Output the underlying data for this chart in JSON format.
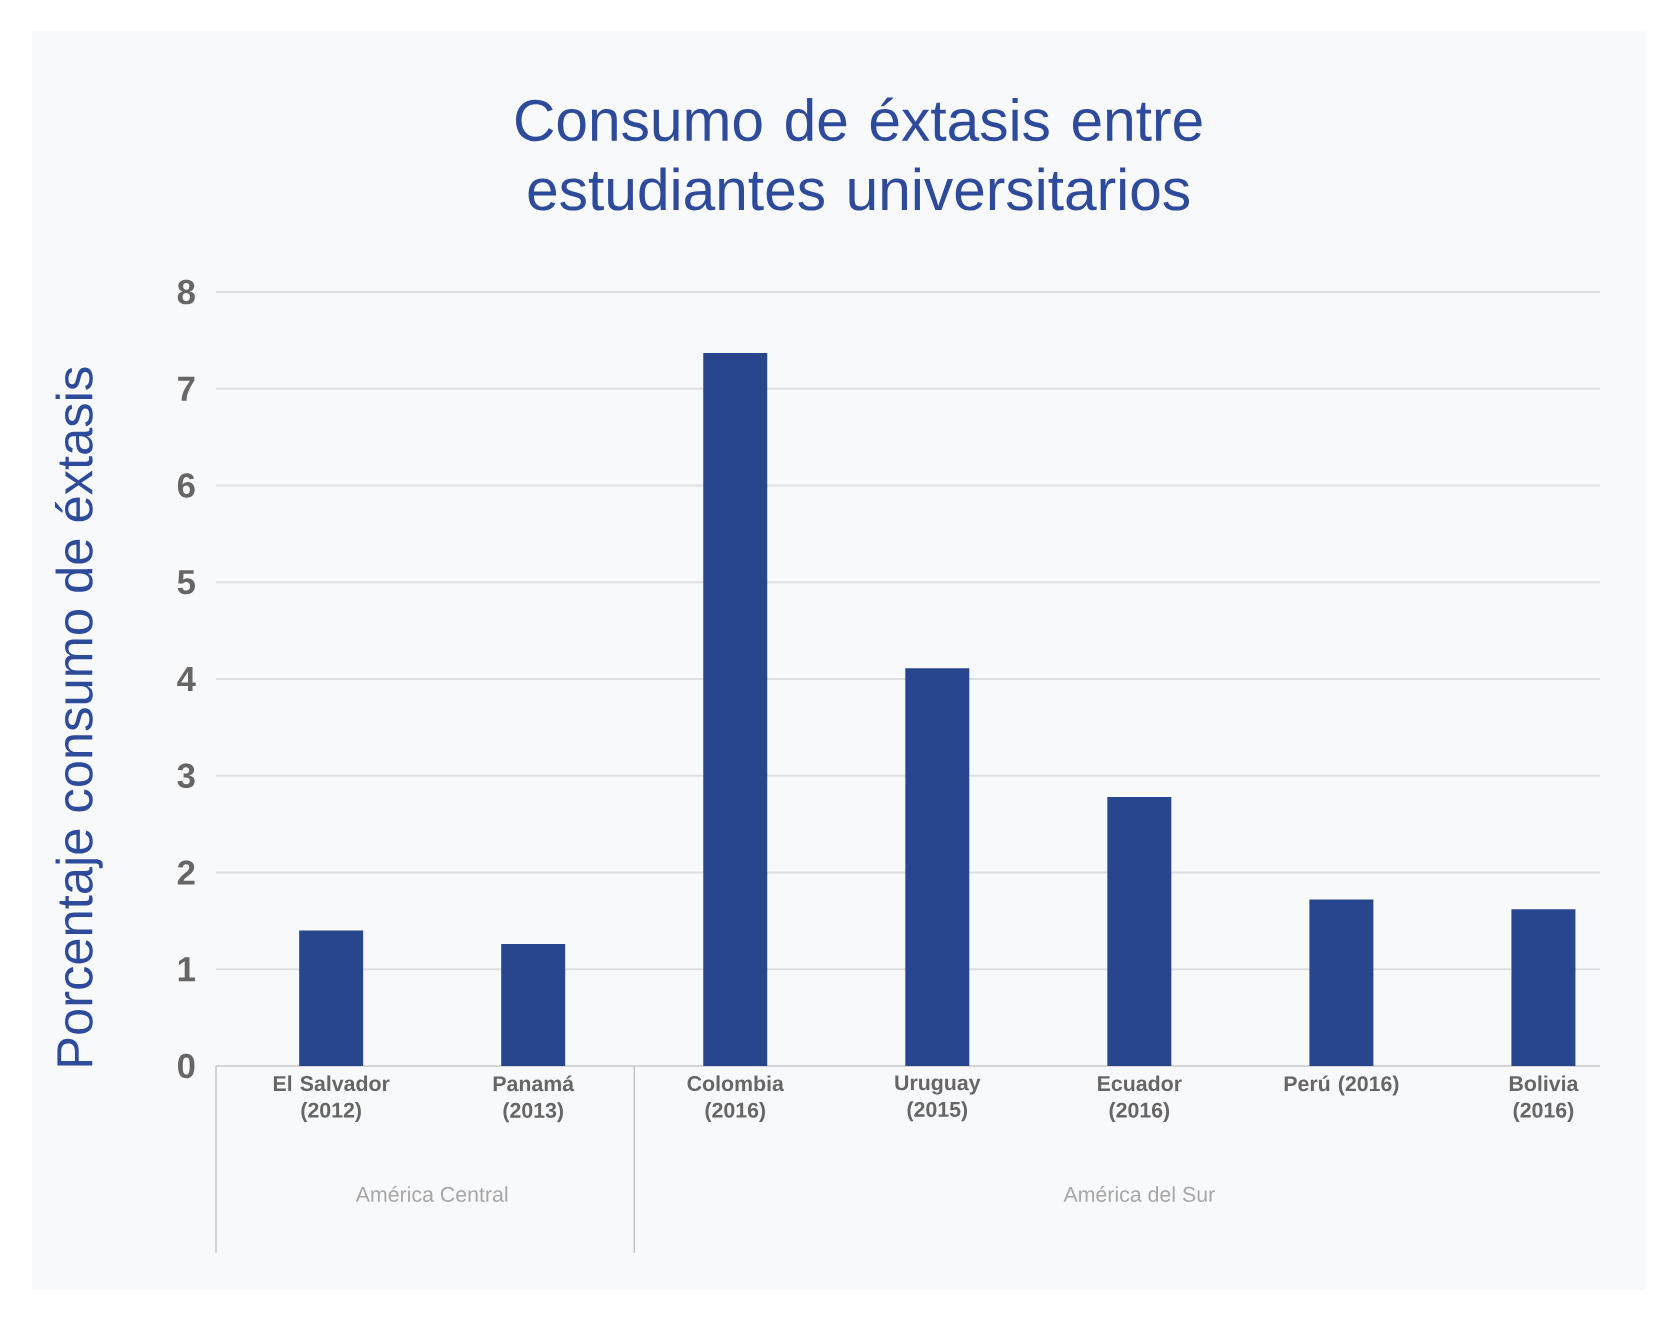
{
  "chart_data": {
    "type": "bar",
    "title": "Consumo de éxtasis entre estudiantes universitarios",
    "ylabel": "Porcentaje consumo de éxtasis",
    "categories": [
      "El Salvador (2012)",
      "Panamá (2013)",
      "Colombia (2016)",
      "Uruguay (2015)",
      "Ecuador (2016)",
      "Perú (2016)",
      "Bolivia (2016)"
    ],
    "values": [
      1.4,
      1.26,
      7.37,
      4.11,
      2.78,
      1.72,
      1.62
    ],
    "color": "#28468e",
    "ylim": [
      0,
      8
    ],
    "yticks": [
      0,
      1,
      2,
      3,
      4,
      5,
      6,
      7,
      8
    ],
    "grid": "y",
    "annotations": [
      "América Central",
      "América del Sur"
    ]
  }
}
